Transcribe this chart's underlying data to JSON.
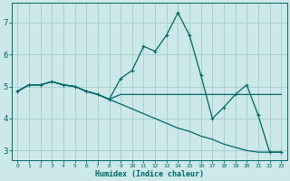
{
  "xlabel": "Humidex (Indice chaleur)",
  "background_color": "#cce8e8",
  "grid_color": "#aacfcf",
  "line_color": "#006666",
  "xlim": [
    -0.5,
    23.5
  ],
  "ylim": [
    2.7,
    7.6
  ],
  "yticks": [
    3,
    4,
    5,
    6,
    7
  ],
  "xticks": [
    0,
    1,
    2,
    3,
    4,
    5,
    6,
    7,
    8,
    9,
    10,
    11,
    12,
    13,
    14,
    15,
    16,
    17,
    18,
    19,
    20,
    21,
    22,
    23
  ],
  "series_main": {
    "x": [
      0,
      1,
      2,
      3,
      4,
      5,
      6,
      7,
      8,
      9,
      10,
      11,
      12,
      13,
      14,
      15,
      16,
      17,
      18,
      19,
      20,
      21,
      22,
      23
    ],
    "y": [
      4.85,
      5.05,
      5.05,
      5.15,
      5.05,
      5.0,
      4.85,
      4.75,
      4.6,
      5.25,
      5.5,
      6.25,
      6.1,
      6.6,
      7.3,
      6.6,
      5.35,
      4.0,
      4.35,
      4.75,
      5.05,
      4.1,
      2.95,
      2.95
    ]
  },
  "series_flat": {
    "x": [
      0,
      1,
      2,
      3,
      4,
      5,
      6,
      7,
      8,
      9,
      10,
      11,
      12,
      13,
      14,
      15,
      16,
      17,
      18,
      19,
      20,
      21,
      22,
      23
    ],
    "y": [
      4.85,
      5.05,
      5.05,
      5.15,
      5.05,
      5.0,
      4.85,
      4.75,
      4.6,
      4.75,
      4.75,
      4.75,
      4.75,
      4.75,
      4.75,
      4.75,
      4.75,
      4.75,
      4.75,
      4.75,
      4.75,
      4.75,
      4.75,
      4.75
    ]
  },
  "series_down": {
    "x": [
      0,
      1,
      2,
      3,
      4,
      5,
      6,
      7,
      8,
      9,
      10,
      11,
      12,
      13,
      14,
      15,
      16,
      17,
      18,
      19,
      20,
      21,
      22,
      23
    ],
    "y": [
      4.85,
      5.05,
      5.05,
      5.15,
      5.05,
      5.0,
      4.85,
      4.75,
      4.6,
      4.45,
      4.3,
      4.15,
      4.0,
      3.85,
      3.7,
      3.6,
      3.45,
      3.35,
      3.2,
      3.1,
      3.0,
      2.95,
      2.95,
      2.95
    ]
  }
}
